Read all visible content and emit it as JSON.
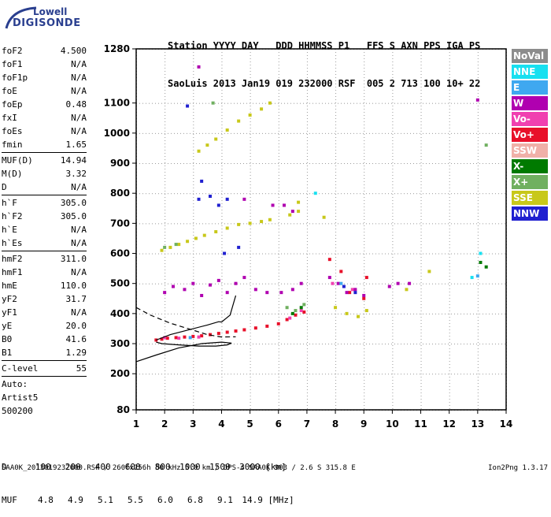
{
  "logo": {
    "brand": "Lowell",
    "product": "DIGISONDE"
  },
  "header": {
    "line1": "Station YYYY DAY   DDD HHMMSS P1   FFS S AXN PPS IGA PS",
    "line2": "SaoLuis 2013 Jan19 019 232000 RSF  005 2 713 100 10+ 22"
  },
  "params": [
    {
      "label": "foF2",
      "value": "4.500"
    },
    {
      "label": "foF1",
      "value": "N/A"
    },
    {
      "label": "foF1p",
      "value": "N/A"
    },
    {
      "label": "foE",
      "value": "N/A"
    },
    {
      "label": "foEp",
      "value": "0.48"
    },
    {
      "label": "fxI",
      "value": "N/A"
    },
    {
      "label": "foEs",
      "value": "N/A"
    },
    {
      "label": "fmin",
      "value": "1.65"
    },
    {
      "sep": true
    },
    {
      "label": "MUF(D)",
      "value": "14.94"
    },
    {
      "label": "M(D)",
      "value": "3.32"
    },
    {
      "label": "D",
      "value": "N/A"
    },
    {
      "sep": true
    },
    {
      "label": "h`F",
      "value": "305.0"
    },
    {
      "label": "h`F2",
      "value": "305.0"
    },
    {
      "label": "h`E",
      "value": "N/A"
    },
    {
      "label": "h`Es",
      "value": "N/A"
    },
    {
      "sep": true
    },
    {
      "label": "hmF2",
      "value": "311.0"
    },
    {
      "label": "hmF1",
      "value": "N/A"
    },
    {
      "label": "hmE",
      "value": "110.0"
    },
    {
      "label": "yF2",
      "value": "31.7"
    },
    {
      "label": "yF1",
      "value": "N/A"
    },
    {
      "label": "yE",
      "value": "20.0"
    },
    {
      "label": "B0",
      "value": "41.6"
    },
    {
      "label": "B1",
      "value": "1.29"
    },
    {
      "sep": true
    },
    {
      "label": "C-level",
      "value": "55"
    },
    {
      "sep": true
    },
    {
      "text": "Auto:"
    },
    {
      "text": "Artist5"
    },
    {
      "text": "500200"
    }
  ],
  "legend": [
    {
      "label": "NoVal",
      "color": "#8c8c8c"
    },
    {
      "label": "NNE",
      "color": "#18e0f0"
    },
    {
      "label": "E",
      "color": "#3fa8f0"
    },
    {
      "label": "W",
      "color": "#b000b0"
    },
    {
      "label": "Vo-",
      "color": "#f040b0"
    },
    {
      "label": "Vo+",
      "color": "#e8102a"
    },
    {
      "label": "SSW",
      "color": "#f0b0a8"
    },
    {
      "label": "X-",
      "color": "#007a00"
    },
    {
      "label": "X+",
      "color": "#70b060"
    },
    {
      "label": "SSE",
      "color": "#c8c81a"
    },
    {
      "label": "NNW",
      "color": "#2020d0"
    }
  ],
  "chart_data": {
    "type": "scatter",
    "xlim": [
      1,
      14
    ],
    "ylim": [
      80,
      1280
    ],
    "x_ticks": [
      1,
      2,
      3,
      4,
      5,
      6,
      7,
      8,
      9,
      10,
      11,
      12,
      13,
      14
    ],
    "y_ticks": [
      80,
      200,
      300,
      400,
      500,
      600,
      700,
      800,
      900,
      1000,
      1100,
      1280
    ],
    "grid": true,
    "series": [
      {
        "color_key": "Vo+",
        "points": [
          [
            1.7,
            312
          ],
          [
            1.9,
            315
          ],
          [
            2.1,
            318
          ],
          [
            2.4,
            320
          ],
          [
            2.7,
            322
          ],
          [
            3.0,
            324
          ],
          [
            3.3,
            326
          ],
          [
            3.6,
            330
          ],
          [
            3.9,
            334
          ],
          [
            4.2,
            338
          ],
          [
            4.5,
            342
          ],
          [
            4.8,
            346
          ],
          [
            5.2,
            352
          ],
          [
            5.6,
            358
          ],
          [
            6.0,
            366
          ],
          [
            6.3,
            380
          ],
          [
            6.6,
            395
          ],
          [
            6.9,
            405
          ],
          [
            7.8,
            580
          ],
          [
            8.2,
            540
          ],
          [
            8.5,
            470
          ],
          [
            9.0,
            450
          ],
          [
            9.1,
            520
          ]
        ]
      },
      {
        "color_key": "Vo-",
        "points": [
          [
            2.0,
            320
          ],
          [
            2.5,
            318
          ],
          [
            3.2,
            322
          ],
          [
            6.4,
            385
          ],
          [
            6.8,
            410
          ],
          [
            7.9,
            500
          ],
          [
            8.6,
            480
          ]
        ]
      },
      {
        "color_key": "W",
        "points": [
          [
            2.0,
            470
          ],
          [
            2.3,
            490
          ],
          [
            2.7,
            480
          ],
          [
            3.0,
            500
          ],
          [
            3.3,
            460
          ],
          [
            3.6,
            495
          ],
          [
            3.9,
            510
          ],
          [
            4.2,
            470
          ],
          [
            4.5,
            500
          ],
          [
            4.8,
            520
          ],
          [
            5.2,
            480
          ],
          [
            5.6,
            470
          ],
          [
            6.1,
            470
          ],
          [
            6.5,
            480
          ],
          [
            6.8,
            500
          ],
          [
            7.8,
            520
          ],
          [
            8.1,
            500
          ],
          [
            8.4,
            470
          ],
          [
            8.7,
            480
          ],
          [
            9.0,
            460
          ],
          [
            9.9,
            490
          ],
          [
            10.2,
            500
          ],
          [
            10.6,
            500
          ],
          [
            13.0,
            1110
          ],
          [
            3.2,
            1220
          ],
          [
            4.8,
            780
          ],
          [
            5.8,
            760
          ],
          [
            6.2,
            760
          ],
          [
            6.5,
            740
          ]
        ]
      },
      {
        "color_key": "NNW",
        "points": [
          [
            3.2,
            780
          ],
          [
            3.6,
            790
          ],
          [
            3.9,
            760
          ],
          [
            4.2,
            780
          ],
          [
            3.3,
            840
          ],
          [
            2.8,
            1090
          ],
          [
            4.6,
            620
          ],
          [
            4.1,
            600
          ],
          [
            8.3,
            490
          ],
          [
            8.7,
            470
          ]
        ]
      },
      {
        "color_key": "SSE",
        "points": [
          [
            1.9,
            610
          ],
          [
            2.2,
            620
          ],
          [
            2.5,
            630
          ],
          [
            2.8,
            640
          ],
          [
            3.1,
            650
          ],
          [
            3.4,
            660
          ],
          [
            3.8,
            672
          ],
          [
            4.2,
            684
          ],
          [
            4.6,
            696
          ],
          [
            5.0,
            700
          ],
          [
            5.4,
            706
          ],
          [
            5.7,
            712
          ],
          [
            6.4,
            728
          ],
          [
            6.7,
            740
          ],
          [
            3.2,
            940
          ],
          [
            3.5,
            960
          ],
          [
            3.8,
            980
          ],
          [
            4.2,
            1010
          ],
          [
            4.6,
            1040
          ],
          [
            5.0,
            1060
          ],
          [
            5.4,
            1080
          ],
          [
            5.7,
            1100
          ],
          [
            6.7,
            770
          ],
          [
            7.6,
            720
          ],
          [
            8.0,
            420
          ],
          [
            8.4,
            400
          ],
          [
            8.8,
            390
          ],
          [
            9.1,
            410
          ],
          [
            10.5,
            480
          ],
          [
            11.3,
            540
          ]
        ]
      },
      {
        "color_key": "X+",
        "points": [
          [
            2.0,
            620
          ],
          [
            2.4,
            630
          ],
          [
            6.3,
            420
          ],
          [
            6.6,
            410
          ],
          [
            6.9,
            430
          ],
          [
            3.7,
            1100
          ],
          [
            13.3,
            960
          ]
        ]
      },
      {
        "color_key": "X-",
        "points": [
          [
            6.5,
            400
          ],
          [
            6.8,
            420
          ],
          [
            13.3,
            555
          ],
          [
            13.1,
            570
          ]
        ]
      },
      {
        "color_key": "NNE",
        "points": [
          [
            7.3,
            800
          ],
          [
            12.8,
            520
          ],
          [
            13.1,
            600
          ]
        ]
      },
      {
        "color_key": "E",
        "points": [
          [
            2.9,
            320
          ],
          [
            8.2,
            500
          ],
          [
            13.0,
            525
          ]
        ]
      }
    ],
    "curves": [
      {
        "style": "solid",
        "points": [
          [
            1.0,
            240
          ],
          [
            1.7,
            262
          ],
          [
            2.5,
            286
          ],
          [
            3.3,
            300
          ],
          [
            4.0,
            305
          ],
          [
            4.35,
            302
          ],
          [
            4.2,
            296
          ],
          [
            3.8,
            292
          ],
          [
            3.2,
            292
          ],
          [
            2.5,
            296
          ],
          [
            1.9,
            300
          ],
          [
            1.7,
            305
          ]
        ]
      },
      {
        "style": "solid",
        "points": [
          [
            1.7,
            312
          ],
          [
            2.2,
            330
          ],
          [
            2.8,
            345
          ],
          [
            3.5,
            362
          ],
          [
            3.9,
            373
          ],
          [
            4.0,
            372
          ],
          [
            4.3,
            395
          ],
          [
            4.5,
            460
          ]
        ]
      },
      {
        "style": "dashed",
        "points": [
          [
            1.0,
            420
          ],
          [
            1.5,
            395
          ],
          [
            2.2,
            368
          ],
          [
            3.0,
            345
          ],
          [
            3.5,
            330
          ],
          [
            4.0,
            322
          ],
          [
            4.5,
            323
          ]
        ]
      }
    ]
  },
  "muf_table": {
    "d_label": "D",
    "d_values": [
      "100",
      "200",
      "400",
      "600",
      "800",
      "1000",
      "1500",
      "3000"
    ],
    "d_unit": "[km]",
    "muf_label": "MUF",
    "muf_values": [
      "4.8",
      "4.9",
      "5.1",
      "5.5",
      "6.0",
      "6.8",
      "9.1",
      "14.9"
    ],
    "muf_unit": "[MHz]"
  },
  "footer": {
    "left": "SAA0K_2013019232000.RSF / 260fx256h 50 kHz 5.0 km / DPS-4 SAA0K 903 / 2.6 S 315.8 E",
    "right": "Ion2Png 1.3.17"
  }
}
